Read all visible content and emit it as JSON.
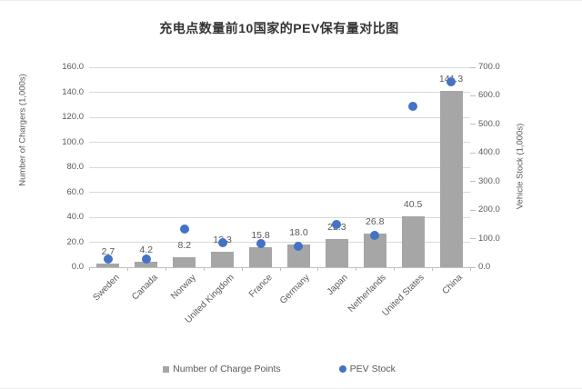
{
  "title": "充电点数量前10国家的PEV保有量对比图",
  "chart_data": {
    "type": "bar",
    "subtype": "combo-bar-scatter",
    "categories": [
      "Sweden",
      "Canada",
      "Norway",
      "United Kingdom",
      "France",
      "Germany",
      "Japan",
      "Netherlands",
      "United States",
      "China"
    ],
    "series": [
      {
        "name": "Number of Charge Points",
        "type": "bar",
        "axis": "left",
        "values": [
          2.7,
          4.2,
          8.2,
          12.3,
          15.8,
          18.0,
          22.3,
          26.8,
          40.5,
          141.3
        ],
        "data_labels_visible": true
      },
      {
        "name": "PEV Stock",
        "type": "scatter",
        "axis": "right",
        "values": [
          29,
          29,
          133,
          86,
          84,
          73,
          151,
          112,
          564,
          649
        ],
        "values_estimated_from_plot": true,
        "data_labels_visible": false
      }
    ],
    "left_axis": {
      "label": "Number of Chargers (1,000s)",
      "min": 0,
      "max": 160,
      "step": 20,
      "tick_decimals": 1
    },
    "right_axis": {
      "label": "Vehicle Stock (1,000s)",
      "min": 0,
      "max": 700,
      "step": 100,
      "tick_decimals": 1
    },
    "grid": true,
    "legend_position": "bottom"
  },
  "colors": {
    "bar": "#a6a6a6",
    "dot": "#4472c4",
    "gridline": "#d9d9d9",
    "axis_line": "#bfbfbf",
    "tick_text": "#595959",
    "title_text": "#333333"
  }
}
